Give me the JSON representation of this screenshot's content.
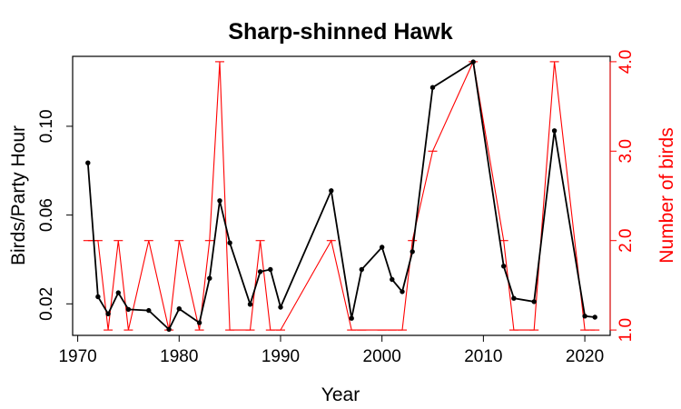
{
  "chart_data": {
    "type": "line",
    "title": "Sharp-shinned Hawk",
    "xlabel": "Year",
    "ylabel": "Birds/Party Hour",
    "y2label": "Number of birds",
    "xlim": [
      1969.5,
      2022.5
    ],
    "ylim": [
      0.0058,
      0.1315
    ],
    "y2lim": [
      0.94,
      4.06
    ],
    "xticks": [
      1970,
      1980,
      1990,
      2000,
      2010,
      2020
    ],
    "yticks": [
      0.02,
      0.06,
      0.1
    ],
    "yticklabels": [
      "0.02",
      "0.06",
      "0.10"
    ],
    "y2ticks": [
      1.0,
      2.0,
      3.0,
      4.0
    ],
    "y2ticklabels": [
      "1.0",
      "2.0",
      "3.0",
      "4.0"
    ],
    "colors": {
      "birds_per_party_hour": "#000000",
      "number_of_birds": "#ff0000"
    },
    "series": [
      {
        "axis": "left",
        "style": "line-points",
        "x": [
          1971,
          1972,
          1973,
          1974,
          1975,
          1977,
          1979,
          1980,
          1982,
          1983,
          1984,
          1985,
          1987,
          1988,
          1989,
          1990,
          1995,
          1997,
          1998,
          2000,
          2001,
          2002,
          2003,
          2005,
          2009,
          2012,
          2013,
          2015,
          2017,
          2020,
          2021
        ],
        "values": [
          0.0835,
          0.0232,
          0.0155,
          0.025,
          0.0175,
          0.017,
          0.0085,
          0.0178,
          0.0115,
          0.0315,
          0.0665,
          0.0475,
          0.0198,
          0.0345,
          0.0355,
          0.0185,
          0.071,
          0.0135,
          0.0355,
          0.0455,
          0.031,
          0.0255,
          0.0435,
          0.1175,
          0.129,
          0.037,
          0.0225,
          0.021,
          0.098,
          0.0145,
          0.014
        ]
      },
      {
        "axis": "right",
        "style": "step-line",
        "x": [
          1971,
          1972,
          1973,
          1974,
          1975,
          1977,
          1979,
          1980,
          1982,
          1983,
          1984,
          1985,
          1987,
          1988,
          1989,
          1990,
          1995,
          1997,
          1998,
          2000,
          2001,
          2002,
          2003,
          2005,
          2009,
          2012,
          2013,
          2015,
          2017,
          2020,
          2021
        ],
        "values": [
          2,
          2,
          1,
          2,
          1,
          2,
          1,
          2,
          1,
          2,
          4,
          1,
          1,
          2,
          1,
          1,
          2,
          1,
          1,
          1,
          1,
          1,
          2,
          3,
          4,
          2,
          1,
          1,
          4,
          1,
          1
        ]
      }
    ]
  }
}
